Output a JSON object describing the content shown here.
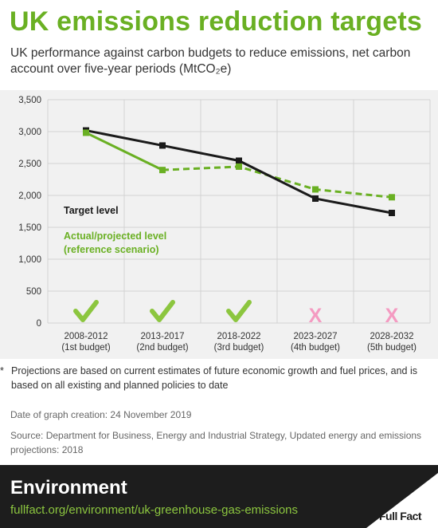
{
  "title": "UK emissions reduction targets",
  "subtitle": "UK performance against carbon budgets to reduce emissions, net carbon account over five-year periods (MtCO₂e)",
  "chart_data": {
    "type": "line",
    "categories": [
      "2008-2012",
      "2013-2017",
      "2018-2022",
      "2023-2027",
      "2028-2032"
    ],
    "category_sublabels": [
      "(1st budget)",
      "(2nd budget)",
      "(3rd budget)",
      "(4th budget)",
      "(5th budget)"
    ],
    "series": [
      {
        "name": "Target level",
        "values": [
          3018,
          2782,
          2544,
          1950,
          1725
        ],
        "color": "#1a1a1a",
        "style": "solid"
      },
      {
        "name": "Actual/projected level (reference scenario)",
        "values": [
          2982,
          2398,
          2451,
          2094,
          1971
        ],
        "color": "#6ab023",
        "style": "solid-then-dashed",
        "dashed_from_index": 1
      }
    ],
    "ylim": [
      0,
      3500
    ],
    "yticks": [
      0,
      500,
      1000,
      1500,
      2000,
      2500,
      3000,
      3500
    ],
    "ytick_labels": [
      "0",
      "500",
      "1,000",
      "1,500",
      "2,000",
      "2,500",
      "3,000",
      "3,500"
    ],
    "grid": true,
    "legend_placement": "left-middle",
    "legend": [
      {
        "label": "Target level",
        "color": "#1a1a1a"
      },
      {
        "label": "Actual/projected level",
        "color": "#6ab023"
      },
      {
        "label": "(reference scenario)",
        "color": "#6ab023"
      }
    ],
    "status_markers": [
      {
        "category": "2008-2012",
        "status": "met",
        "icon": "check-icon",
        "color": "#8cc63f"
      },
      {
        "category": "2013-2017",
        "status": "met",
        "icon": "check-icon",
        "color": "#8cc63f"
      },
      {
        "category": "2018-2022",
        "status": "met",
        "icon": "check-icon",
        "color": "#8cc63f"
      },
      {
        "category": "2023-2027",
        "status": "missed",
        "icon": "cross-icon",
        "label": "X",
        "color": "#f49ac1"
      },
      {
        "category": "2028-2032",
        "status": "missed",
        "icon": "cross-icon",
        "label": "X",
        "color": "#f49ac1"
      }
    ]
  },
  "footnote": {
    "marker": "*",
    "text": "Projections are based on current estimates of future economic growth and fuel prices, and is based on all existing and planned policies to date"
  },
  "date_created": "Date of graph creation: 24 November 2019",
  "source": "Source: Department for Business, Energy and Industrial Strategy, Updated energy and emissions projections: 2018",
  "footer": {
    "section": "Environment",
    "url": "fullfact.org/environment/uk-greenhouse-gas-emissions",
    "logo": "Full Fact",
    "accent_color": "#8cc63f",
    "background_color": "#1d1d1d"
  }
}
